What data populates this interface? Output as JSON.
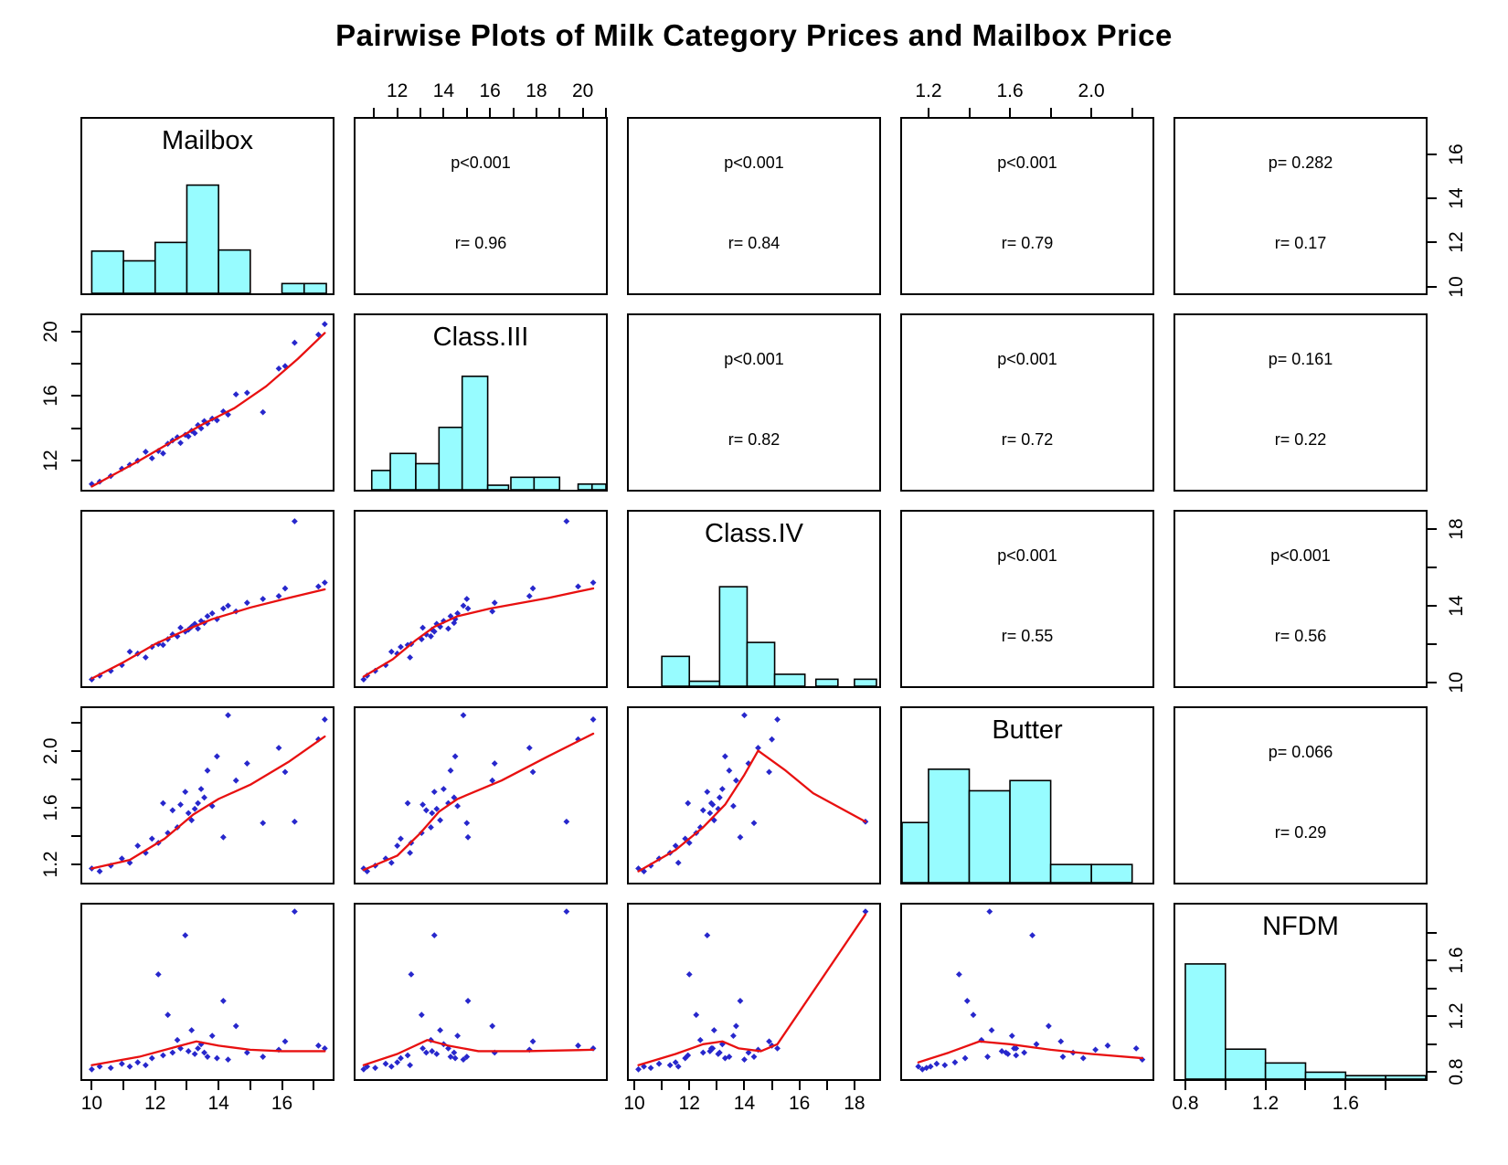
{
  "title": "Pairwise Plots of Milk Category Prices and Mailbox Price",
  "colors": {
    "hist_fill": "#97fcff",
    "hist_stroke": "#000000",
    "point": "#2727cc",
    "smooth_line": "#e81010",
    "panel_border": "#000000"
  },
  "chart_data": {
    "type": "scatter",
    "subtype": "scatterplot-matrix",
    "title": "Pairwise Plots of Milk Category Prices and Mailbox Price",
    "variables": [
      {
        "name": "Mailbox",
        "domain": [
          9.7,
          17.6
        ]
      },
      {
        "name": "Class.III",
        "domain": [
          10.2,
          21.0
        ]
      },
      {
        "name": "Class.IV",
        "domain": [
          9.8,
          18.9
        ]
      },
      {
        "name": "Butter",
        "domain": [
          1.07,
          2.3
        ]
      },
      {
        "name": "NFDM",
        "domain": [
          0.75,
          2.0
        ]
      }
    ],
    "stats": {
      "mailbox_class3": {
        "p": "p<0.001",
        "r": "r= 0.96"
      },
      "mailbox_class4": {
        "p": "p<0.001",
        "r": "r= 0.84"
      },
      "mailbox_butter": {
        "p": "p<0.001",
        "r": "r= 0.79"
      },
      "mailbox_nfdm": {
        "p": "p= 0.282",
        "r": "r= 0.17"
      },
      "class3_class4": {
        "p": "p<0.001",
        "r": "r= 0.82"
      },
      "class3_butter": {
        "p": "p<0.001",
        "r": "r= 0.72"
      },
      "class3_nfdm": {
        "p": "p= 0.161",
        "r": "r= 0.22"
      },
      "class4_butter": {
        "p": "p<0.001",
        "r": "r= 0.55"
      },
      "class4_nfdm": {
        "p": "p<0.001",
        "r": "r= 0.56"
      },
      "butter_nfdm": {
        "p": "p= 0.066",
        "r": "r= 0.29"
      }
    },
    "observations": {
      "Mailbox": [
        10.0,
        10.25,
        10.6,
        10.95,
        11.2,
        11.45,
        11.7,
        11.9,
        12.1,
        12.25,
        12.4,
        12.55,
        12.7,
        12.8,
        12.95,
        13.05,
        13.15,
        13.25,
        13.35,
        13.45,
        13.55,
        13.65,
        13.8,
        13.95,
        14.15,
        14.3,
        14.55,
        14.9,
        15.4,
        15.9,
        16.1,
        16.4,
        17.15,
        17.35
      ],
      "Class.III": [
        10.55,
        10.7,
        11.05,
        11.5,
        11.75,
        12.0,
        12.55,
        12.15,
        12.6,
        12.45,
        13.05,
        13.25,
        13.45,
        13.1,
        13.6,
        13.5,
        13.85,
        13.7,
        14.2,
        14.0,
        14.45,
        14.3,
        14.6,
        14.5,
        15.05,
        14.85,
        16.1,
        16.2,
        15.0,
        17.7,
        17.85,
        19.3,
        19.8,
        20.45
      ],
      "Class.IV": [
        10.15,
        10.35,
        10.6,
        10.9,
        11.6,
        11.5,
        11.3,
        11.85,
        12.0,
        11.95,
        12.25,
        12.5,
        12.4,
        12.85,
        12.65,
        12.75,
        12.9,
        13.05,
        12.8,
        13.2,
        13.1,
        13.45,
        13.6,
        13.3,
        13.85,
        14.0,
        13.7,
        14.15,
        14.35,
        14.5,
        14.9,
        18.4,
        15.0,
        15.2
      ],
      "Butter": [
        1.17,
        1.15,
        1.19,
        1.24,
        1.21,
        1.33,
        1.28,
        1.38,
        1.35,
        1.63,
        1.42,
        1.58,
        1.46,
        1.62,
        1.71,
        1.56,
        1.51,
        1.59,
        1.63,
        1.73,
        1.67,
        1.86,
        1.61,
        1.96,
        1.39,
        2.25,
        1.79,
        1.91,
        1.49,
        2.02,
        1.85,
        1.5,
        2.08,
        2.22
      ],
      "NFDM": [
        0.82,
        0.84,
        0.83,
        0.86,
        0.84,
        0.87,
        0.85,
        0.9,
        1.5,
        0.92,
        1.21,
        0.94,
        1.03,
        0.97,
        1.78,
        0.95,
        1.1,
        0.93,
        0.97,
        1.0,
        0.94,
        0.91,
        1.06,
        0.9,
        1.31,
        0.89,
        1.13,
        0.94,
        0.91,
        0.96,
        1.02,
        1.95,
        0.99,
        0.97
      ]
    },
    "smooths": {
      "Class.III|Mailbox": [
        [
          10,
          10.4
        ],
        [
          11.5,
          12.0
        ],
        [
          12.5,
          13.15
        ],
        [
          13.5,
          14.25
        ],
        [
          14.5,
          15.25
        ],
        [
          15.5,
          16.6
        ],
        [
          16.5,
          18.3
        ],
        [
          17.35,
          19.9
        ]
      ],
      "Class.IV|Mailbox": [
        [
          10,
          10.2
        ],
        [
          11,
          11.05
        ],
        [
          12,
          12.0
        ],
        [
          13,
          12.75
        ],
        [
          13.8,
          13.3
        ],
        [
          15,
          13.9
        ],
        [
          16.2,
          14.4
        ],
        [
          17.35,
          14.85
        ]
      ],
      "Class.IV|Class.III": [
        [
          10.55,
          10.3
        ],
        [
          11.8,
          11.2
        ],
        [
          12.8,
          12.2
        ],
        [
          13.6,
          12.9
        ],
        [
          14.6,
          13.45
        ],
        [
          16,
          13.85
        ],
        [
          18.5,
          14.4
        ],
        [
          20.45,
          14.9
        ]
      ],
      "Butter|Mailbox": [
        [
          10,
          1.17
        ],
        [
          11.2,
          1.23
        ],
        [
          12.3,
          1.38
        ],
        [
          13.2,
          1.55
        ],
        [
          14,
          1.66
        ],
        [
          15,
          1.76
        ],
        [
          16.2,
          1.92
        ],
        [
          17.35,
          2.1
        ]
      ],
      "Butter|Class.III": [
        [
          10.55,
          1.16
        ],
        [
          12,
          1.26
        ],
        [
          13,
          1.42
        ],
        [
          13.8,
          1.57
        ],
        [
          14.6,
          1.66
        ],
        [
          16.5,
          1.79
        ],
        [
          18.5,
          1.96
        ],
        [
          20.45,
          2.12
        ]
      ],
      "Butter|Class.IV": [
        [
          10.15,
          1.15
        ],
        [
          11.5,
          1.3
        ],
        [
          12.5,
          1.46
        ],
        [
          13.3,
          1.62
        ],
        [
          14,
          1.83
        ],
        [
          14.5,
          2.0
        ],
        [
          15.5,
          1.86
        ],
        [
          16.5,
          1.7
        ],
        [
          18.4,
          1.5
        ]
      ],
      "NFDM|Mailbox": [
        [
          10,
          0.85
        ],
        [
          11.5,
          0.91
        ],
        [
          12.8,
          0.99
        ],
        [
          13.3,
          1.02
        ],
        [
          14,
          0.99
        ],
        [
          15,
          0.96
        ],
        [
          16,
          0.95
        ],
        [
          17.35,
          0.95
        ]
      ],
      "NFDM|Class.III": [
        [
          10.55,
          0.85
        ],
        [
          12,
          0.93
        ],
        [
          13.3,
          1.03
        ],
        [
          14.2,
          0.99
        ],
        [
          15.5,
          0.95
        ],
        [
          17.5,
          0.95
        ],
        [
          20.45,
          0.96
        ]
      ],
      "NFDM|Class.IV": [
        [
          10.15,
          0.85
        ],
        [
          11.5,
          0.93
        ],
        [
          12.5,
          1.0
        ],
        [
          13.2,
          1.02
        ],
        [
          13.8,
          0.97
        ],
        [
          14.6,
          0.95
        ],
        [
          15.2,
          1.0
        ],
        [
          18.4,
          1.93
        ]
      ],
      "NFDM|Butter": [
        [
          1.15,
          0.87
        ],
        [
          1.3,
          0.94
        ],
        [
          1.45,
          1.02
        ],
        [
          1.6,
          1.0
        ],
        [
          1.8,
          0.96
        ],
        [
          2.0,
          0.93
        ],
        [
          2.25,
          0.9
        ]
      ]
    },
    "histograms": {
      "Mailbox": {
        "max_frac": 0.62,
        "bars": [
          [
            10,
            11,
            0.39
          ],
          [
            11,
            12,
            0.3
          ],
          [
            12,
            13,
            0.47
          ],
          [
            13,
            14,
            1.0
          ],
          [
            14,
            15,
            0.4
          ],
          [
            16.0,
            16.7,
            0.09
          ],
          [
            16.7,
            17.4,
            0.09
          ]
        ]
      },
      "Class.III": {
        "max_frac": 0.65,
        "bars": [
          [
            10.9,
            11.7,
            0.17
          ],
          [
            11.7,
            12.8,
            0.32
          ],
          [
            12.8,
            13.8,
            0.23
          ],
          [
            13.8,
            14.8,
            0.55
          ],
          [
            14.8,
            15.9,
            1.0
          ],
          [
            15.9,
            16.8,
            0.04
          ],
          [
            16.9,
            17.9,
            0.11
          ],
          [
            17.9,
            19.0,
            0.11
          ],
          [
            19.8,
            20.4,
            0.05
          ],
          [
            20.4,
            21.0,
            0.05
          ]
        ]
      },
      "Class.IV": {
        "max_frac": 0.57,
        "bars": [
          [
            11.0,
            12.0,
            0.3
          ],
          [
            12.0,
            13.1,
            0.05
          ],
          [
            13.1,
            14.1,
            1.0
          ],
          [
            14.1,
            15.1,
            0.44
          ],
          [
            15.1,
            16.2,
            0.12
          ],
          [
            16.6,
            17.4,
            0.07
          ],
          [
            18.0,
            18.8,
            0.07
          ]
        ]
      },
      "Butter": {
        "max_frac": 0.65,
        "bars": [
          [
            1.07,
            1.2,
            0.53
          ],
          [
            1.2,
            1.4,
            1.0
          ],
          [
            1.4,
            1.6,
            0.81
          ],
          [
            1.6,
            1.8,
            0.9
          ],
          [
            1.8,
            2.0,
            0.16
          ],
          [
            2.0,
            2.2,
            0.16
          ]
        ]
      },
      "NFDM": {
        "max_frac": 0.66,
        "bars": [
          [
            0.8,
            1.0,
            1.0
          ],
          [
            1.0,
            1.2,
            0.26
          ],
          [
            1.2,
            1.4,
            0.14
          ],
          [
            1.4,
            1.6,
            0.06
          ],
          [
            1.6,
            1.8,
            0.03
          ],
          [
            1.8,
            2.0,
            0.03
          ]
        ]
      }
    },
    "edge_axes": [
      {
        "edge": "top",
        "index": 1,
        "var": "Class.III",
        "labeled": [
          [
            12,
            "12"
          ],
          [
            14,
            "14"
          ],
          [
            16,
            "16"
          ],
          [
            18,
            "18"
          ],
          [
            20,
            "20"
          ]
        ],
        "minor": [
          11,
          13,
          15,
          17,
          19,
          21
        ]
      },
      {
        "edge": "top",
        "index": 3,
        "var": "Butter",
        "labeled": [
          [
            1.2,
            "1.2"
          ],
          [
            1.6,
            "1.6"
          ],
          [
            2.0,
            "2.0"
          ]
        ],
        "minor": [
          1.4,
          1.8,
          2.2
        ]
      },
      {
        "edge": "bottom",
        "index": 0,
        "var": "Mailbox",
        "labeled": [
          [
            10,
            "10"
          ],
          [
            12,
            "12"
          ],
          [
            14,
            "14"
          ],
          [
            16,
            "16"
          ]
        ],
        "minor": [
          11,
          13,
          15,
          17
        ]
      },
      {
        "edge": "bottom",
        "index": 2,
        "var": "Class.IV",
        "labeled": [
          [
            10,
            "10"
          ],
          [
            12,
            "12"
          ],
          [
            14,
            "14"
          ],
          [
            16,
            "16"
          ],
          [
            18,
            "18"
          ]
        ],
        "minor": [
          11,
          13,
          15,
          17
        ]
      },
      {
        "edge": "bottom",
        "index": 4,
        "var": "NFDM",
        "labeled": [
          [
            0.8,
            "0.8"
          ],
          [
            1.2,
            "1.2"
          ],
          [
            1.6,
            "1.6"
          ]
        ],
        "minor": [
          1.0,
          1.4,
          1.8
        ]
      },
      {
        "edge": "left",
        "index": 1,
        "var": "Class.III",
        "labeled": [
          [
            12,
            "12"
          ],
          [
            16,
            "16"
          ],
          [
            20,
            "20"
          ]
        ],
        "minor": [
          14,
          18
        ]
      },
      {
        "edge": "left",
        "index": 3,
        "var": "Butter",
        "labeled": [
          [
            1.2,
            "1.2"
          ],
          [
            1.6,
            "1.6"
          ],
          [
            2.0,
            "2.0"
          ]
        ],
        "minor": [
          1.4,
          1.8,
          2.2
        ]
      },
      {
        "edge": "right",
        "index": 0,
        "var": "Mailbox",
        "labeled": [
          [
            10,
            "10"
          ],
          [
            12,
            "12"
          ],
          [
            14,
            "14"
          ],
          [
            16,
            "16"
          ]
        ],
        "minor": []
      },
      {
        "edge": "right",
        "index": 2,
        "var": "Class.IV",
        "labeled": [
          [
            10,
            "10"
          ],
          [
            14,
            "14"
          ],
          [
            18,
            "18"
          ]
        ],
        "minor": [
          12,
          16
        ]
      },
      {
        "edge": "right",
        "index": 4,
        "var": "NFDM",
        "labeled": [
          [
            0.8,
            "0.8"
          ],
          [
            1.2,
            "1.2"
          ],
          [
            1.6,
            "1.6"
          ]
        ],
        "minor": [
          1.0,
          1.4,
          1.8
        ]
      }
    ]
  }
}
